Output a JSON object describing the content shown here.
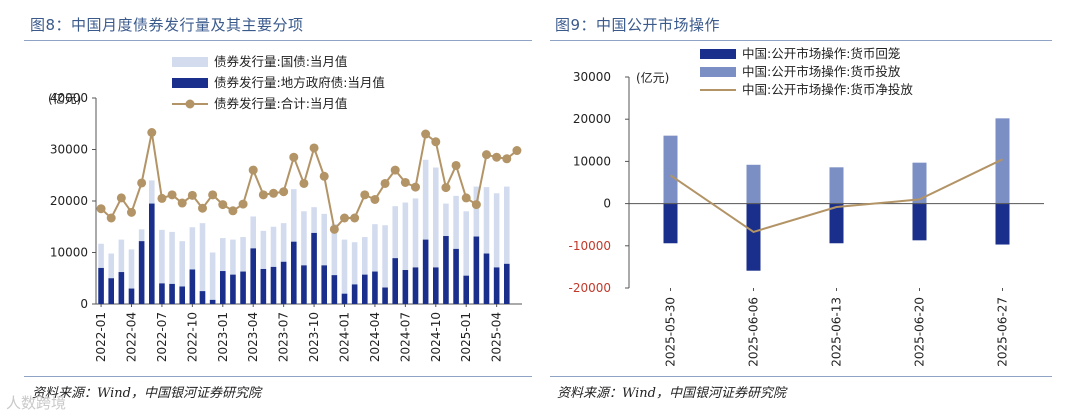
{
  "left_panel": {
    "title": "图8：中国月度债券发行量及其主要分项",
    "source": "资料来源：Wind，中国银河证券研究院"
  },
  "right_panel": {
    "title": "图9：中国公开市场操作",
    "source": "资料来源：Wind，中国银河证券研究院"
  },
  "watermark": "人数跨境",
  "colors": {
    "light_bar": "#d3dcee",
    "dark_bar": "#1a2f8c",
    "line": "#b39466",
    "mid_bar": "#7b8fc4",
    "title": "#3a5a8c",
    "negative_tick": "#c0392b"
  },
  "chart_data": [
    {
      "type": "bar",
      "title": "中国月度债券发行量及其主要分项",
      "ylabel": "(亿元)",
      "ylim": [
        0,
        40000
      ],
      "yticks": [
        0,
        10000,
        20000,
        30000,
        40000
      ],
      "legend_position": "top-center",
      "xtick_labels": [
        "2022-01",
        "2022-04",
        "2022-07",
        "2022-10",
        "2023-01",
        "2023-04",
        "2023-07",
        "2023-10",
        "2024-01",
        "2024-04",
        "2024-07",
        "2024-10",
        "2025-01",
        "2025-04"
      ],
      "categories": [
        "2022-01",
        "2022-02",
        "2022-03",
        "2022-04",
        "2022-05",
        "2022-06",
        "2022-07",
        "2022-08",
        "2022-09",
        "2022-10",
        "2022-11",
        "2022-12",
        "2023-01",
        "2023-02",
        "2023-03",
        "2023-04",
        "2023-05",
        "2023-06",
        "2023-07",
        "2023-08",
        "2023-09",
        "2023-10",
        "2023-11",
        "2023-12",
        "2024-01",
        "2024-02",
        "2024-03",
        "2024-04",
        "2024-05",
        "2024-06",
        "2024-07",
        "2024-08",
        "2024-09",
        "2024-10",
        "2024-11",
        "2024-12",
        "2025-01",
        "2025-02",
        "2025-03",
        "2025-04",
        "2025-05",
        "2025-06"
      ],
      "series": [
        {
          "name": "债券发行量:国债:当月值",
          "kind": "bar",
          "values": [
            11700,
            9800,
            12500,
            10600,
            14500,
            24000,
            14400,
            14000,
            12200,
            14900,
            15700,
            10000,
            12800,
            12500,
            13000,
            17000,
            14200,
            15000,
            15700,
            22300,
            18000,
            18800,
            17500,
            15500,
            12500,
            12000,
            13000,
            15500,
            15300,
            19000,
            19700,
            20500,
            28000,
            26500,
            19500,
            21000,
            18000,
            22800,
            22700,
            21500,
            22800,
            0
          ]
        },
        {
          "name": "债券发行量:地方政府债:当月值",
          "kind": "bar",
          "values": [
            7000,
            5000,
            6200,
            3000,
            12200,
            19500,
            4000,
            3900,
            3400,
            6700,
            2500,
            800,
            6400,
            5700,
            6300,
            10800,
            6800,
            7200,
            8200,
            12100,
            7500,
            13800,
            7500,
            5600,
            2000,
            3800,
            5700,
            6300,
            3200,
            8900,
            6600,
            7100,
            12500,
            7100,
            13200,
            10700,
            5500,
            13100,
            9800,
            7100,
            7800,
            0
          ]
        },
        {
          "name": "债券发行量:合计:当月值",
          "kind": "line",
          "values": [
            18500,
            16700,
            20600,
            17800,
            23500,
            33300,
            20500,
            21200,
            19600,
            21100,
            18600,
            21200,
            19300,
            18100,
            19400,
            26000,
            21200,
            21500,
            21800,
            28500,
            23400,
            30300,
            24800,
            14500,
            16700,
            16700,
            21200,
            20300,
            23400,
            26000,
            23600,
            22700,
            33000,
            31500,
            22600,
            26900,
            20600,
            19300,
            29000,
            28500,
            28200,
            29800
          ]
        }
      ]
    },
    {
      "type": "bar",
      "title": "中国公开市场操作",
      "ylabel": "(亿元)",
      "ylim": [
        -20000,
        30000
      ],
      "yticks": [
        -20000,
        -10000,
        0,
        10000,
        20000,
        30000
      ],
      "legend_position": "top-center",
      "categories": [
        "2025-05-30",
        "2025-06-06",
        "2025-06-13",
        "2025-06-20",
        "2025-06-27"
      ],
      "series": [
        {
          "name": "中国:公开市场操作:货币回笼",
          "kind": "bar",
          "values": [
            -9400,
            -15900,
            -9400,
            -8700,
            -9700
          ]
        },
        {
          "name": "中国:公开市场操作:货币投放",
          "kind": "bar",
          "values": [
            16100,
            9200,
            8600,
            9700,
            20200
          ]
        },
        {
          "name": "中国:公开市场操作:货币净投放",
          "kind": "line",
          "values": [
            6700,
            -6700,
            -800,
            1000,
            10500
          ]
        }
      ]
    }
  ]
}
